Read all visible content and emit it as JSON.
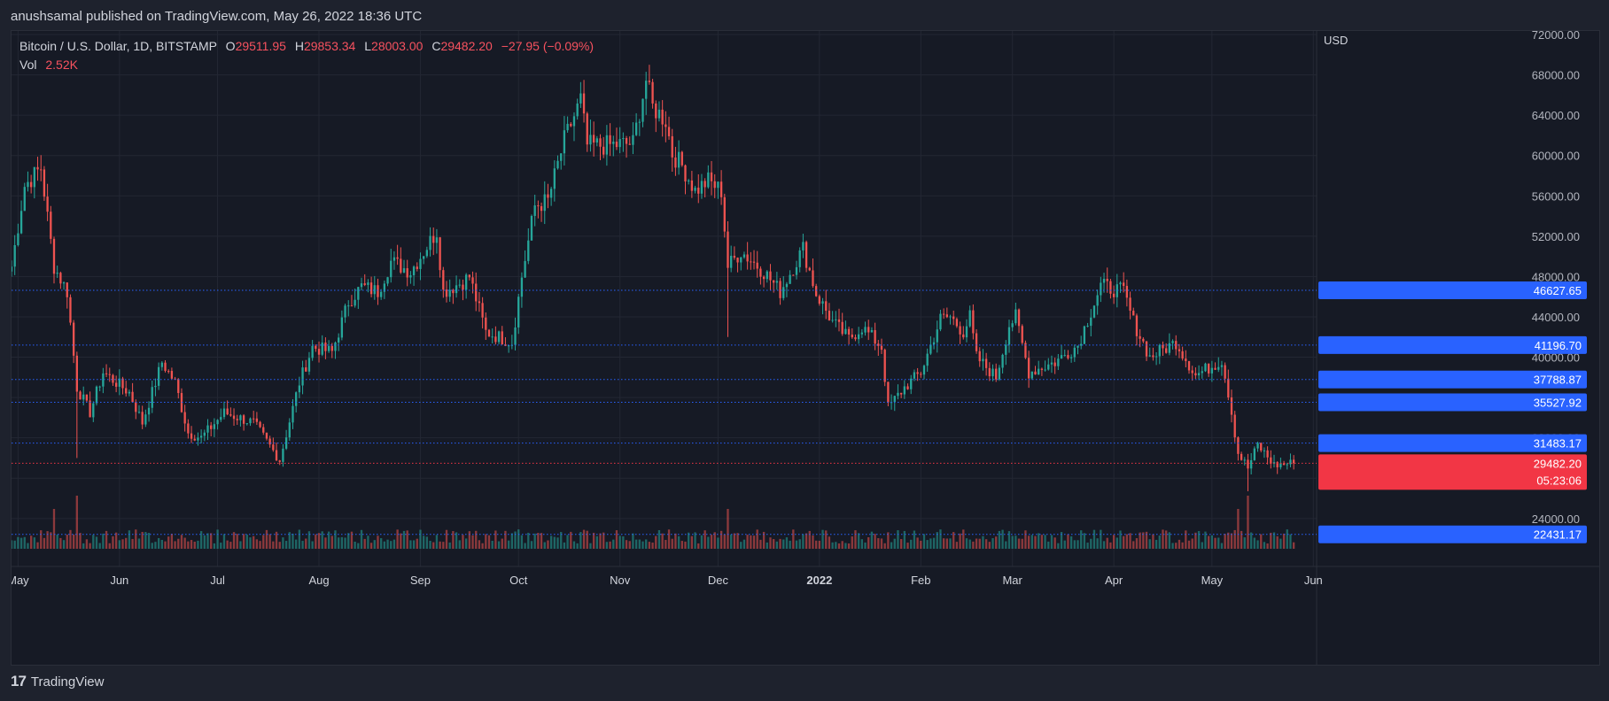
{
  "header": {
    "published": "anushsamal published on TradingView.com, May 26, 2022 18:36 UTC"
  },
  "legend": {
    "symbol": "Bitcoin / U.S. Dollar, 1D, BITSTAMP",
    "o_label": "O",
    "o_value": "29511.95",
    "h_label": "H",
    "h_value": "29853.34",
    "l_label": "L",
    "l_value": "28003.00",
    "c_label": "C",
    "c_value": "29482.20",
    "change": "−27.95 (−0.09%)",
    "vol_label": "Vol",
    "vol_value": "2.52K"
  },
  "footer": {
    "brand": "TradingView",
    "logo": "tv-logo-icon"
  },
  "colors": {
    "up": "#26a69a",
    "down": "#ef5350",
    "level": "#2962ff",
    "price": "#f23645",
    "bg": "#161a25",
    "grid": "#232733",
    "text": "#b2b5be"
  },
  "chart_data": {
    "type": "candlestick",
    "title": "Bitcoin / U.S. Dollar, 1D, BITSTAMP",
    "currency": "USD",
    "ylim": [
      21000,
      72000
    ],
    "y_ticks": [
      24000,
      28000,
      32000,
      36000,
      40000,
      44000,
      48000,
      52000,
      56000,
      60000,
      64000,
      68000,
      72000
    ],
    "x_ticks": [
      {
        "label": "May",
        "date": "2021-05-01"
      },
      {
        "label": "Jun",
        "date": "2021-06-01"
      },
      {
        "label": "Jul",
        "date": "2021-07-01"
      },
      {
        "label": "Aug",
        "date": "2021-08-01"
      },
      {
        "label": "Sep",
        "date": "2021-09-01"
      },
      {
        "label": "Oct",
        "date": "2021-10-01"
      },
      {
        "label": "Nov",
        "date": "2021-11-01"
      },
      {
        "label": "Dec",
        "date": "2021-12-01"
      },
      {
        "label": "2022",
        "date": "2022-01-01",
        "bold": true
      },
      {
        "label": "Feb",
        "date": "2022-02-01"
      },
      {
        "label": "Mar",
        "date": "2022-03-01"
      },
      {
        "label": "Apr",
        "date": "2022-04-01"
      },
      {
        "label": "May",
        "date": "2022-05-01"
      },
      {
        "label": "Jun",
        "date": "2022-06-01"
      }
    ],
    "x_range": [
      "2021-04-29",
      "2022-06-02"
    ],
    "close_path": [
      {
        "date": "2021-04-29",
        "close": 49000
      },
      {
        "date": "2021-05-03",
        "close": 57000
      },
      {
        "date": "2021-05-08",
        "close": 58800
      },
      {
        "date": "2021-05-12",
        "close": 49000
      },
      {
        "date": "2021-05-16",
        "close": 46500
      },
      {
        "date": "2021-05-19",
        "close": 37000
      },
      {
        "date": "2021-05-23",
        "close": 34500
      },
      {
        "date": "2021-05-27",
        "close": 38500
      },
      {
        "date": "2021-06-04",
        "close": 36500
      },
      {
        "date": "2021-06-08",
        "close": 33500
      },
      {
        "date": "2021-06-14",
        "close": 39500
      },
      {
        "date": "2021-06-18",
        "close": 37500
      },
      {
        "date": "2021-06-22",
        "close": 32500
      },
      {
        "date": "2021-06-26",
        "close": 32000
      },
      {
        "date": "2021-07-03",
        "close": 34500
      },
      {
        "date": "2021-07-12",
        "close": 33500
      },
      {
        "date": "2021-07-20",
        "close": 29800
      },
      {
        "date": "2021-07-26",
        "close": 37500
      },
      {
        "date": "2021-07-30",
        "close": 41000
      },
      {
        "date": "2021-08-05",
        "close": 40500
      },
      {
        "date": "2021-08-10",
        "close": 45500
      },
      {
        "date": "2021-08-14",
        "close": 47000
      },
      {
        "date": "2021-08-19",
        "close": 46500
      },
      {
        "date": "2021-08-23",
        "close": 49500
      },
      {
        "date": "2021-08-29",
        "close": 48500
      },
      {
        "date": "2021-09-06",
        "close": 52500
      },
      {
        "date": "2021-09-08",
        "close": 46500
      },
      {
        "date": "2021-09-14",
        "close": 47500
      },
      {
        "date": "2021-09-16",
        "close": 48000
      },
      {
        "date": "2021-09-21",
        "close": 42500
      },
      {
        "date": "2021-09-29",
        "close": 41500
      },
      {
        "date": "2021-10-02",
        "close": 48000
      },
      {
        "date": "2021-10-06",
        "close": 55000
      },
      {
        "date": "2021-10-10",
        "close": 55500
      },
      {
        "date": "2021-10-15",
        "close": 61500
      },
      {
        "date": "2021-10-20",
        "close": 65500
      },
      {
        "date": "2021-10-22",
        "close": 61000
      },
      {
        "date": "2021-10-28",
        "close": 61000
      },
      {
        "date": "2021-11-05",
        "close": 61200
      },
      {
        "date": "2021-11-09",
        "close": 67500
      },
      {
        "date": "2021-11-11",
        "close": 64800
      },
      {
        "date": "2021-11-15",
        "close": 63500
      },
      {
        "date": "2021-11-17",
        "close": 60200
      },
      {
        "date": "2021-11-20",
        "close": 59000
      },
      {
        "date": "2021-11-24",
        "close": 56500
      },
      {
        "date": "2021-11-28",
        "close": 57500
      },
      {
        "date": "2021-12-02",
        "close": 56500
      },
      {
        "date": "2021-12-04",
        "close": 49000
      },
      {
        "date": "2021-12-08",
        "close": 50500
      },
      {
        "date": "2021-12-15",
        "close": 48500
      },
      {
        "date": "2021-12-20",
        "close": 46500
      },
      {
        "date": "2021-12-27",
        "close": 50800
      },
      {
        "date": "2021-12-31",
        "close": 46300
      },
      {
        "date": "2022-01-05",
        "close": 43500
      },
      {
        "date": "2022-01-10",
        "close": 41800
      },
      {
        "date": "2022-01-14",
        "close": 43000
      },
      {
        "date": "2022-01-20",
        "close": 41000
      },
      {
        "date": "2022-01-22",
        "close": 35000
      },
      {
        "date": "2022-01-27",
        "close": 37000
      },
      {
        "date": "2022-02-01",
        "close": 38500
      },
      {
        "date": "2022-02-07",
        "close": 43800
      },
      {
        "date": "2022-02-10",
        "close": 44000
      },
      {
        "date": "2022-02-14",
        "close": 42500
      },
      {
        "date": "2022-02-16",
        "close": 44000
      },
      {
        "date": "2022-02-18",
        "close": 40000
      },
      {
        "date": "2022-02-24",
        "close": 38000
      },
      {
        "date": "2022-02-28",
        "close": 43200
      },
      {
        "date": "2022-03-02",
        "close": 44000
      },
      {
        "date": "2022-03-06",
        "close": 38500
      },
      {
        "date": "2022-03-14",
        "close": 39500
      },
      {
        "date": "2022-03-21",
        "close": 41200
      },
      {
        "date": "2022-03-28",
        "close": 47100
      },
      {
        "date": "2022-04-04",
        "close": 46500
      },
      {
        "date": "2022-04-07",
        "close": 43500
      },
      {
        "date": "2022-04-12",
        "close": 40000
      },
      {
        "date": "2022-04-20",
        "close": 41500
      },
      {
        "date": "2022-04-26",
        "close": 38200
      },
      {
        "date": "2022-05-04",
        "close": 39700
      },
      {
        "date": "2022-05-06",
        "close": 36500
      },
      {
        "date": "2022-05-09",
        "close": 30500
      },
      {
        "date": "2022-05-12",
        "close": 29000
      },
      {
        "date": "2022-05-15",
        "close": 31300
      },
      {
        "date": "2022-05-20",
        "close": 29300
      },
      {
        "date": "2022-05-26",
        "close": 29482
      }
    ],
    "notable_wicks": [
      {
        "date": "2021-05-19",
        "low": 30000
      },
      {
        "date": "2021-12-04",
        "low": 42000
      },
      {
        "date": "2021-11-10",
        "high": 69000
      },
      {
        "date": "2022-05-12",
        "low": 26700
      }
    ],
    "levels": [
      {
        "label": "46627.65",
        "value": 46627.65
      },
      {
        "label": "41196.70",
        "value": 41196.7
      },
      {
        "label": "37788.87",
        "value": 37788.87
      },
      {
        "label": "35527.92",
        "value": 35527.92
      },
      {
        "label": "31483.17",
        "value": 31483.17
      },
      {
        "label": "22431.17",
        "value": 22431.17
      }
    ],
    "last_price": {
      "label": "29482.20",
      "value": 29482.2,
      "countdown": "05:23:06"
    },
    "volume_label": "Vol"
  }
}
